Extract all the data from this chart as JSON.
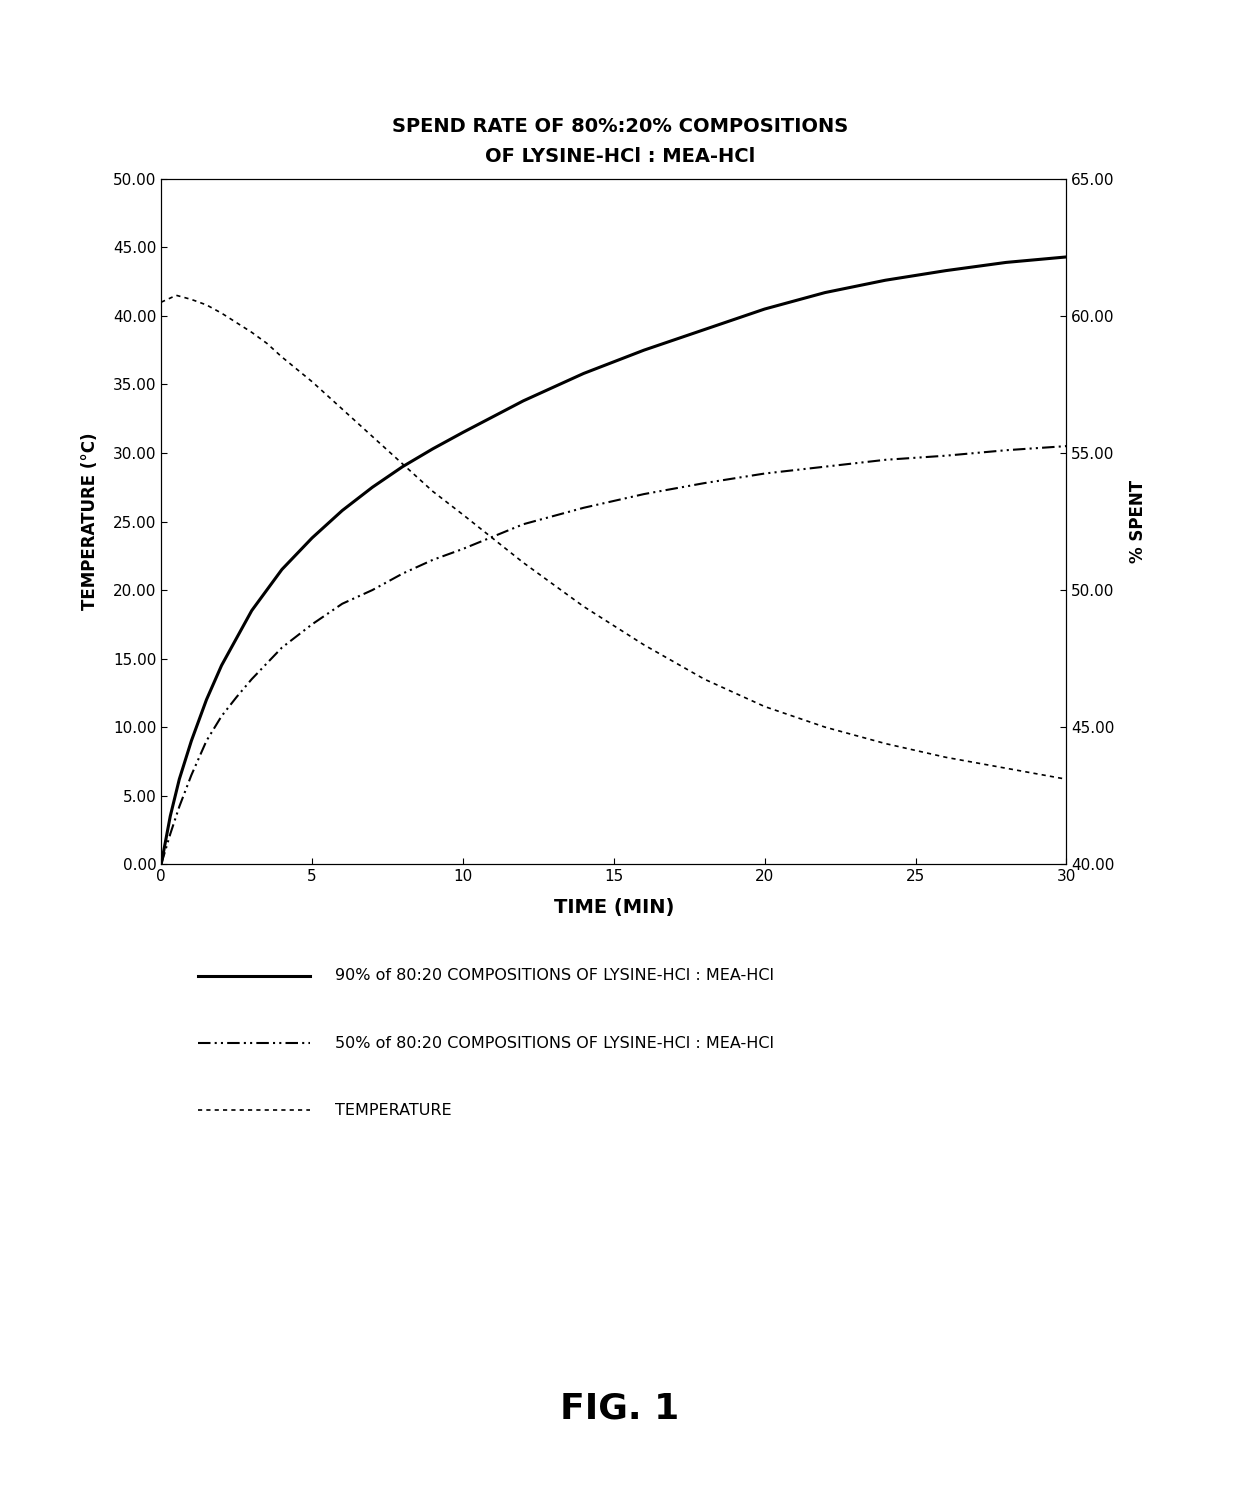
{
  "title_line1": "SPEND RATE OF 80%:20% COMPOSITIONS",
  "title_line2": "OF LYSINE-HCl : MEA-HCl",
  "xlabel": "TIME (MIN)",
  "ylabel_left": "TEMPERATURE (°C)",
  "ylabel_right": "% SPENT",
  "xlim": [
    0,
    30
  ],
  "ylim_left": [
    0,
    50
  ],
  "ylim_right": [
    40,
    65
  ],
  "xticks": [
    0,
    5,
    10,
    15,
    20,
    25,
    30
  ],
  "yticks_left": [
    0.0,
    5.0,
    10.0,
    15.0,
    20.0,
    25.0,
    30.0,
    35.0,
    40.0,
    45.0,
    50.0
  ],
  "yticks_right": [
    40.0,
    45.0,
    50.0,
    55.0,
    60.0,
    65.0
  ],
  "fig_label": "FIG. 1",
  "legend": [
    {
      "label": "90% of 80:20 COMPOSITIONS OF LYSINE-HCl : MEA-HCl"
    },
    {
      "label": "50% of 80:20 COMPOSITIONS OF LYSINE-HCl : MEA-HCl"
    },
    {
      "label": "TEMPERATURE"
    }
  ],
  "line_90_x": [
    0,
    0.3,
    0.6,
    1,
    1.5,
    2,
    2.5,
    3,
    4,
    5,
    6,
    7,
    8,
    9,
    10,
    12,
    14,
    16,
    18,
    20,
    22,
    24,
    26,
    28,
    30
  ],
  "line_90_y": [
    0,
    3.5,
    6.2,
    9.0,
    12.0,
    14.5,
    16.5,
    18.5,
    21.5,
    23.8,
    25.8,
    27.5,
    29.0,
    30.3,
    31.5,
    33.8,
    35.8,
    37.5,
    39.0,
    40.5,
    41.7,
    42.6,
    43.3,
    43.9,
    44.3
  ],
  "line_50_x": [
    0,
    0.3,
    0.6,
    1,
    1.5,
    2,
    2.5,
    3,
    4,
    5,
    6,
    7,
    8,
    9,
    10,
    12,
    14,
    16,
    18,
    20,
    22,
    24,
    26,
    28,
    30
  ],
  "line_50_y": [
    0,
    2.2,
    4.2,
    6.5,
    9.0,
    10.8,
    12.2,
    13.5,
    15.8,
    17.5,
    19.0,
    20.0,
    21.2,
    22.2,
    23.0,
    24.8,
    26.0,
    27.0,
    27.8,
    28.5,
    29.0,
    29.5,
    29.8,
    30.2,
    30.5
  ],
  "temp_x": [
    0,
    0.5,
    1,
    1.5,
    2,
    2.5,
    3,
    3.5,
    4,
    5,
    6,
    7,
    8,
    9,
    10,
    12,
    14,
    16,
    18,
    20,
    22,
    24,
    26,
    28,
    30
  ],
  "temp_y": [
    41.0,
    41.5,
    41.2,
    40.8,
    40.2,
    39.5,
    38.8,
    38.0,
    37.0,
    35.2,
    33.2,
    31.2,
    29.2,
    27.2,
    25.5,
    22.0,
    18.8,
    16.0,
    13.5,
    11.5,
    10.0,
    8.8,
    7.8,
    7.0,
    6.2
  ]
}
